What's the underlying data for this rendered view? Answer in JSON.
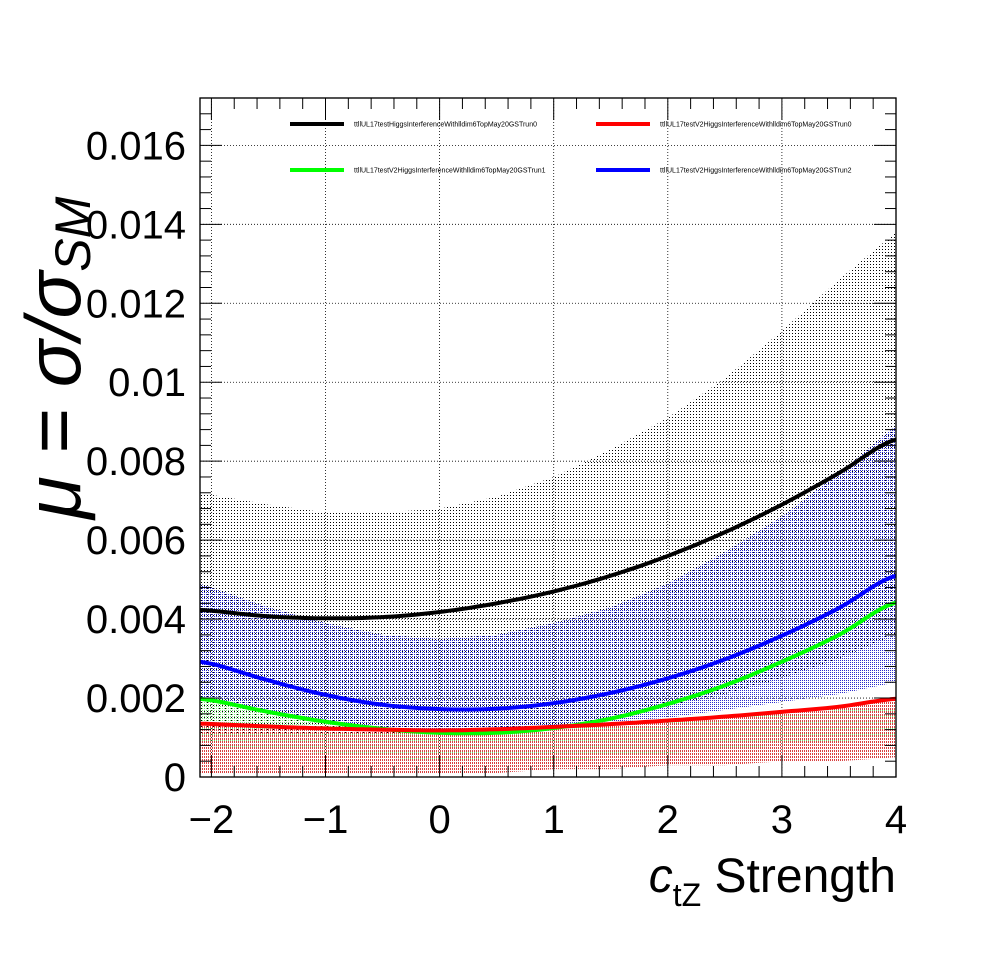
{
  "chart_data": {
    "type": "line",
    "title": "",
    "xlabel": {
      "main": "c",
      "sub": "tZ",
      "rest": " Strength"
    },
    "ylabel": {
      "main": "μ = σ/σ",
      "sub": "SM"
    },
    "xlim": [
      -2.1,
      4
    ],
    "ylim": [
      0,
      0.0172
    ],
    "xticks": [
      {
        "v": -2,
        "label": "−2"
      },
      {
        "v": -1,
        "label": "−1"
      },
      {
        "v": 0,
        "label": "0"
      },
      {
        "v": 1,
        "label": "1"
      },
      {
        "v": 2,
        "label": "2"
      },
      {
        "v": 3,
        "label": "3"
      },
      {
        "v": 4,
        "label": "4"
      }
    ],
    "yticks": [
      {
        "v": 0,
        "label": "0"
      },
      {
        "v": 0.002,
        "label": "0.002"
      },
      {
        "v": 0.004,
        "label": "0.004"
      },
      {
        "v": 0.006,
        "label": "0.006"
      },
      {
        "v": 0.008,
        "label": "0.008"
      },
      {
        "v": 0.01,
        "label": "0.01"
      },
      {
        "v": 0.012,
        "label": "0.012"
      },
      {
        "v": 0.014,
        "label": "0.014"
      },
      {
        "v": 0.016,
        "label": "0.016"
      }
    ],
    "grid": true,
    "legend_position": "top",
    "series": [
      {
        "name": "ttllUL17testHiggsInterferenceWithlldim6TopMay20GSTrun0",
        "color": "#000000",
        "band_color": "#000000",
        "x": [
          -2.1,
          -1.5,
          -1,
          -0.5,
          0,
          0.5,
          1,
          1.5,
          2,
          2.5,
          3,
          3.5,
          4
        ],
        "y": [
          0.00423,
          0.00407,
          0.00402,
          0.00405,
          0.00418,
          0.0044,
          0.0047,
          0.0051,
          0.0056,
          0.0062,
          0.0069,
          0.0077,
          0.00855
        ],
        "band_low": [
          0.0011,
          0.0011,
          0.0011,
          0.0011,
          0.0011,
          0.0012,
          0.0013,
          0.0015,
          0.0018,
          0.0021,
          0.0025,
          0.003,
          0.0036
        ],
        "band_high": [
          0.0072,
          0.0069,
          0.0067,
          0.0067,
          0.0068,
          0.0071,
          0.0076,
          0.0083,
          0.0091,
          0.0101,
          0.0113,
          0.0126,
          0.0138
        ]
      },
      {
        "name": "ttllUL17testV2HiggsInterferenceWithlldim6TopMay20GSTrun0",
        "color": "#ff0000",
        "band_color": "#e34a4a",
        "x": [
          -2.1,
          -1.5,
          -1,
          -0.5,
          0,
          0.5,
          1,
          1.5,
          2,
          2.5,
          3,
          3.5,
          4
        ],
        "y": [
          0.00135,
          0.00128,
          0.00123,
          0.0012,
          0.00118,
          0.00121,
          0.00127,
          0.00134,
          0.00143,
          0.00153,
          0.00165,
          0.00178,
          0.00198
        ],
        "band_low": [
          0.0001,
          0.0001,
          0.0001,
          0.0001,
          0.0001,
          0.0001,
          0.0002,
          0.0002,
          0.0003,
          0.0003,
          0.0004,
          0.0004,
          0.0005
        ],
        "band_high": [
          0.00132,
          0.00126,
          0.00122,
          0.00119,
          0.00117,
          0.0012,
          0.00126,
          0.00133,
          0.00142,
          0.00152,
          0.00164,
          0.00177,
          0.00197
        ]
      },
      {
        "name": "ttllUL17testV2HiggsInterferenceWithlldim6TopMay20GSTrun1",
        "color": "#00ff00",
        "band_color": "#6ee06e",
        "x": [
          -2.1,
          -1.5,
          -1,
          -0.5,
          0,
          0.5,
          1,
          1.5,
          2,
          2.5,
          3,
          3.5,
          4
        ],
        "y": [
          0.00198,
          0.00165,
          0.0014,
          0.00122,
          0.00112,
          0.00112,
          0.00124,
          0.00148,
          0.00185,
          0.00232,
          0.00292,
          0.0036,
          0.00442
        ],
        "band_low": [
          0.0008,
          0.0007,
          0.0006,
          0.0005,
          0.0004,
          0.0004,
          0.0004,
          0.0005,
          0.0006,
          0.0007,
          0.0008,
          0.0009,
          0.001
        ],
        "band_high": [
          0.00196,
          0.00163,
          0.00138,
          0.0012,
          0.0011,
          0.0011,
          0.0012,
          0.0013,
          0.0014,
          0.0015,
          0.0016,
          0.0017,
          0.0018
        ]
      },
      {
        "name": "ttllUL17testV2HiggsInterferenceWithlldim6TopMay20GSTrun2",
        "color": "#0000ff",
        "band_color": "#3b3bd6",
        "x": [
          -2.1,
          -1.5,
          -1,
          -0.5,
          0,
          0.5,
          1,
          1.5,
          2,
          2.5,
          3,
          3.5,
          4
        ],
        "y": [
          0.00292,
          0.00245,
          0.00208,
          0.00183,
          0.00172,
          0.00173,
          0.00187,
          0.00213,
          0.0025,
          0.00298,
          0.00358,
          0.00428,
          0.0051
        ],
        "band_low": [
          0.0011,
          0.0011,
          0.0011,
          0.0011,
          0.0011,
          0.0012,
          0.0013,
          0.0014,
          0.0015,
          0.0017,
          0.0019,
          0.0021,
          0.0024
        ],
        "band_high": [
          0.0049,
          0.0043,
          0.0039,
          0.0036,
          0.0035,
          0.0036,
          0.0039,
          0.0043,
          0.0049,
          0.0057,
          0.0066,
          0.0077,
          0.0089
        ]
      }
    ]
  }
}
